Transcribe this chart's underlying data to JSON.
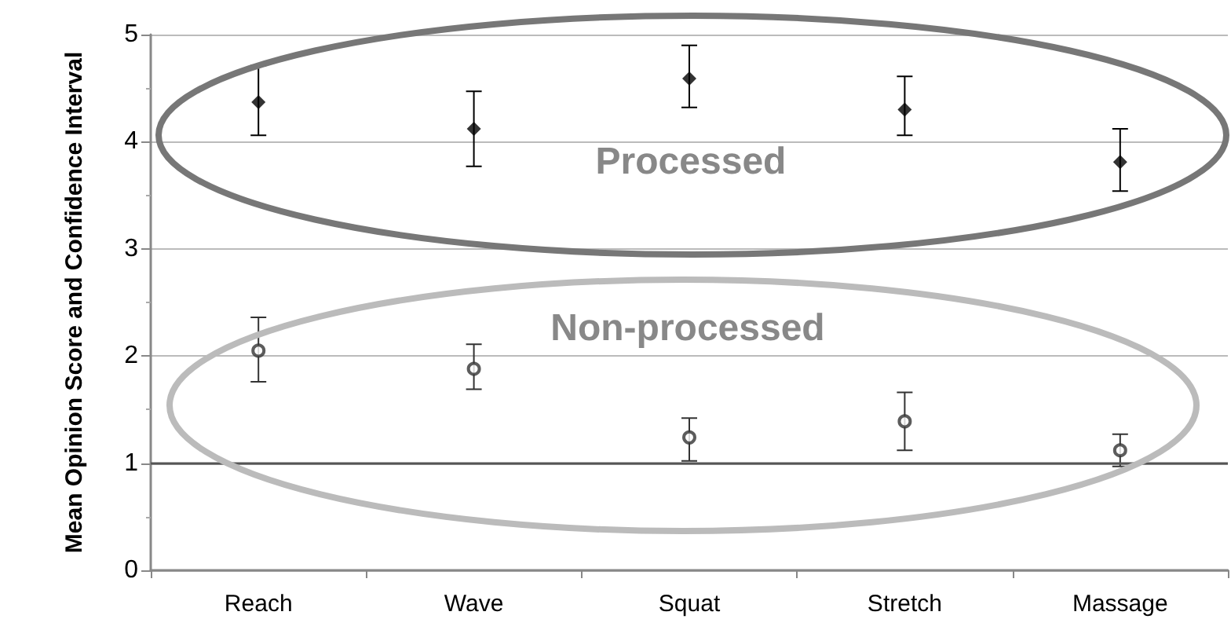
{
  "chart_data": {
    "type": "scatter",
    "ylabel": "Mean Opinion Score and Confidence Interval",
    "categories": [
      "Reach",
      "Wave",
      "Squat",
      "Stretch",
      "Massage"
    ],
    "series": [
      {
        "color": "#000000",
        "marker": "diamond",
        "values": [
          4.37,
          4.12,
          4.59,
          4.3,
          3.81
        ],
        "errors": [
          [
            4.06,
            4.71
          ],
          [
            3.77,
            4.47
          ],
          [
            4.32,
            4.9
          ],
          [
            4.06,
            4.61
          ],
          [
            3.54,
            4.12
          ]
        ]
      },
      {
        "color": "#333333",
        "marker": "circle",
        "values": [
          2.05,
          1.88,
          1.24,
          1.39,
          1.12
        ],
        "errors": [
          [
            1.76,
            2.36
          ],
          [
            1.69,
            2.11
          ],
          [
            1.02,
            1.42
          ],
          [
            1.12,
            1.66
          ],
          [
            0.97,
            1.27
          ]
        ]
      }
    ],
    "annotations": [
      "Processed",
      "Non-processed"
    ],
    "ylim": [
      0,
      5
    ],
    "yticks": [
      0,
      1,
      2,
      3,
      4,
      5
    ],
    "grid": "y",
    "ref_lines": [
      {
        "axis": "y",
        "value": 1,
        "color": "#555555"
      }
    ]
  }
}
